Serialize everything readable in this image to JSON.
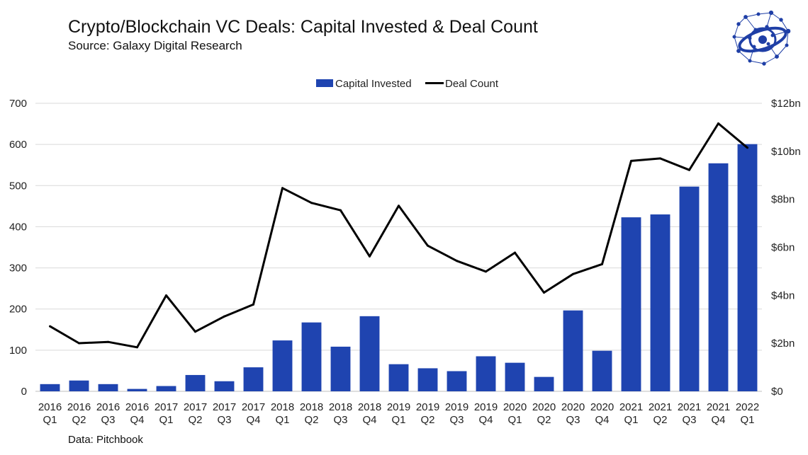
{
  "header": {
    "title": "Crypto/Blockchain VC Deals: Capital Invested & Deal Count",
    "subtitle": "Source: Galaxy Digital Research"
  },
  "footer": {
    "note": "Data: Pitchbook"
  },
  "logo": {
    "icon": "galaxy-network-logo-icon",
    "color": "#1f3fa6"
  },
  "chart_data": {
    "type": "bar",
    "categories": [
      [
        "2016",
        "Q1"
      ],
      [
        "2016",
        "Q2"
      ],
      [
        "2016",
        "Q3"
      ],
      [
        "2016",
        "Q4"
      ],
      [
        "2017",
        "Q1"
      ],
      [
        "2017",
        "Q2"
      ],
      [
        "2017",
        "Q3"
      ],
      [
        "2017",
        "Q4"
      ],
      [
        "2018",
        "Q1"
      ],
      [
        "2018",
        "Q2"
      ],
      [
        "2018",
        "Q3"
      ],
      [
        "2018",
        "Q4"
      ],
      [
        "2019",
        "Q1"
      ],
      [
        "2019",
        "Q2"
      ],
      [
        "2019",
        "Q3"
      ],
      [
        "2019",
        "Q4"
      ],
      [
        "2020",
        "Q1"
      ],
      [
        "2020",
        "Q2"
      ],
      [
        "2020",
        "Q3"
      ],
      [
        "2020",
        "Q4"
      ],
      [
        "2021",
        "Q1"
      ],
      [
        "2021",
        "Q2"
      ],
      [
        "2021",
        "Q3"
      ],
      [
        "2021",
        "Q4"
      ],
      [
        "2022",
        "Q1"
      ]
    ],
    "series": [
      {
        "name": "Capital Invested",
        "type": "bar",
        "axis": "right",
        "unit": "$bn",
        "color": "#1f44b0",
        "values": [
          0.3,
          0.45,
          0.3,
          0.1,
          0.22,
          0.68,
          0.42,
          1.0,
          2.12,
          2.87,
          1.86,
          3.13,
          1.13,
          0.96,
          0.84,
          1.46,
          1.19,
          0.6,
          3.37,
          1.69,
          7.25,
          7.37,
          8.53,
          9.5,
          10.3
        ]
      },
      {
        "name": "Deal Count",
        "type": "line",
        "axis": "left",
        "color": "#000000",
        "values": [
          158,
          117,
          120,
          107,
          233,
          145,
          182,
          211,
          494,
          458,
          440,
          328,
          451,
          354,
          317,
          291,
          337,
          240,
          285,
          309,
          560,
          566,
          538,
          651,
          592
        ]
      }
    ],
    "left_axis": {
      "min": 0,
      "max": 700,
      "ticks": [
        "0",
        "100",
        "200",
        "300",
        "400",
        "500",
        "600",
        "700"
      ]
    },
    "right_axis": {
      "min": 0,
      "max": 12,
      "ticks": [
        "$0",
        "$2bn",
        "$4bn",
        "$6bn",
        "$8bn",
        "$10bn",
        "$12bn"
      ]
    },
    "grid": true,
    "legend_position": "top-center"
  }
}
